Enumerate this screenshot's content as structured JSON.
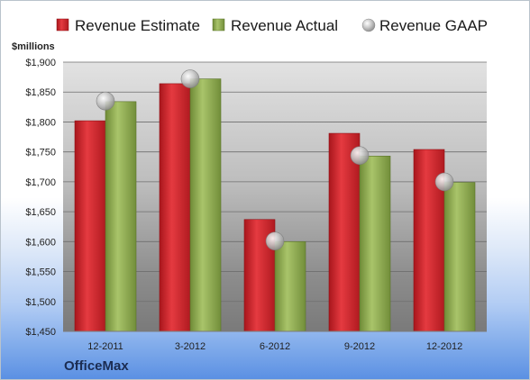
{
  "chart_data": {
    "type": "bar",
    "ylabel": "$millions",
    "ylim": [
      1450,
      1900
    ],
    "ytick_step": 50,
    "yticks": [
      "$1,450",
      "$1,500",
      "$1,550",
      "$1,600",
      "$1,650",
      "$1,700",
      "$1,750",
      "$1,800",
      "$1,850",
      "$1,900"
    ],
    "categories": [
      "12-2011",
      "3-2012",
      "6-2012",
      "9-2012",
      "12-2012"
    ],
    "series": [
      {
        "name": "Revenue Estimate",
        "type": "bar",
        "color": "#cc1f27",
        "values": [
          1802,
          1864,
          1637,
          1781,
          1754
        ]
      },
      {
        "name": "Revenue Actual",
        "type": "bar",
        "color": "#8fac4f",
        "values": [
          1834,
          1872,
          1600,
          1743,
          1699
        ]
      },
      {
        "name": "Revenue GAAP",
        "type": "marker",
        "color": "#b0b0b0",
        "values": [
          1835,
          1872,
          1601,
          1744,
          1700
        ]
      }
    ],
    "legend_position": "top",
    "grid": true,
    "footer": "OfficeMax"
  }
}
